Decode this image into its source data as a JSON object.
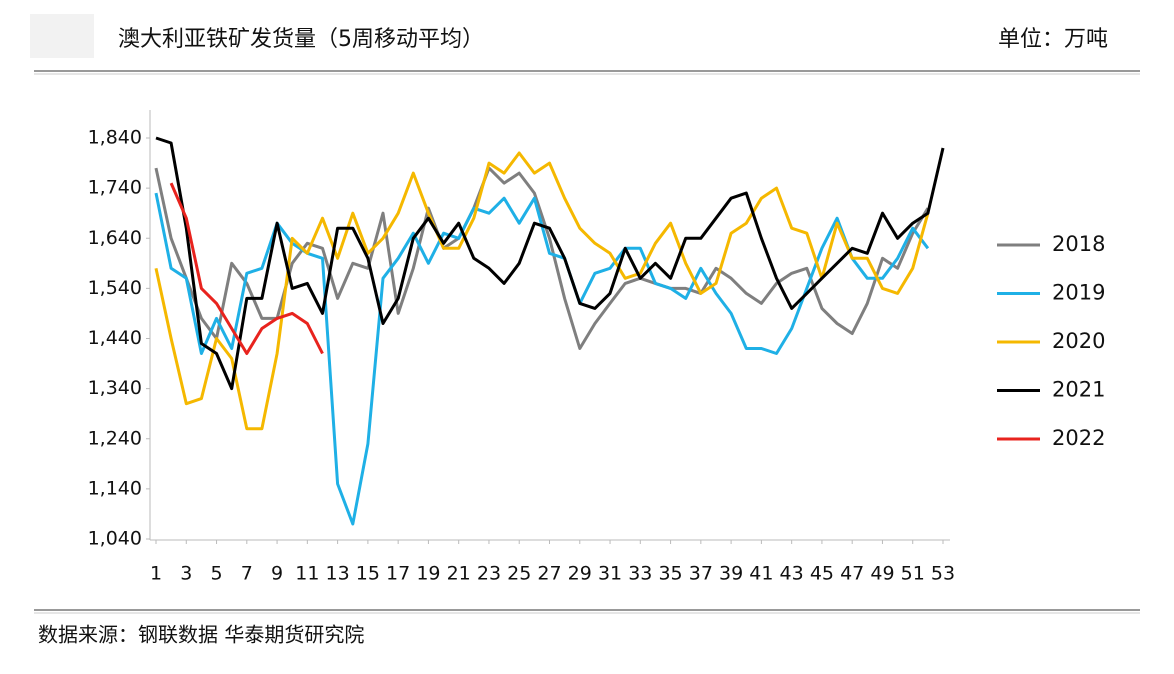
{
  "chart_data": {
    "type": "line",
    "title": "澳大利亚铁矿发货量（5周移动平均）",
    "unit": "单位：万吨",
    "source": "数据来源：钢联数据 华泰期货研究院",
    "x": [
      1,
      2,
      3,
      4,
      5,
      6,
      7,
      8,
      9,
      10,
      11,
      12,
      13,
      14,
      15,
      16,
      17,
      18,
      19,
      20,
      21,
      22,
      23,
      24,
      25,
      26,
      27,
      28,
      29,
      30,
      31,
      32,
      33,
      34,
      35,
      36,
      37,
      38,
      39,
      40,
      41,
      42,
      43,
      44,
      45,
      46,
      47,
      48,
      49,
      50,
      51,
      52,
      53
    ],
    "xlim": [
      1,
      53
    ],
    "xticks": [
      1,
      3,
      5,
      7,
      9,
      11,
      13,
      15,
      17,
      19,
      21,
      23,
      25,
      27,
      29,
      31,
      33,
      35,
      37,
      39,
      41,
      43,
      45,
      47,
      49,
      51,
      53
    ],
    "ylim": [
      1040,
      1840
    ],
    "yticks": [
      {
        "value": 1040,
        "label": "1,040"
      },
      {
        "value": 1140,
        "label": "1,140"
      },
      {
        "value": 1240,
        "label": "1,240"
      },
      {
        "value": 1340,
        "label": "1,340"
      },
      {
        "value": 1440,
        "label": "1,440"
      },
      {
        "value": 1540,
        "label": "1,540"
      },
      {
        "value": 1640,
        "label": "1,640"
      },
      {
        "value": 1740,
        "label": "1,740"
      },
      {
        "value": 1840,
        "label": "1,840"
      }
    ],
    "series": [
      {
        "name": "2018",
        "color": "#7f7f7f",
        "values": [
          1780,
          1640,
          1560,
          1480,
          1440,
          1590,
          1550,
          1480,
          1480,
          1590,
          1630,
          1620,
          1520,
          1590,
          1580,
          1690,
          1490,
          1580,
          1700,
          1620,
          1640,
          1700,
          1780,
          1750,
          1770,
          1730,
          1640,
          1520,
          1420,
          1470,
          1510,
          1550,
          1560,
          1550,
          1540,
          1540,
          1530,
          1580,
          1560,
          1530,
          1510,
          1550,
          1570,
          1580,
          1500,
          1470,
          1450,
          1510,
          1600,
          1580,
          1650,
          1700,
          null
        ]
      },
      {
        "name": "2019",
        "color": "#1fb0e6",
        "values": [
          1730,
          1580,
          1560,
          1410,
          1480,
          1420,
          1570,
          1580,
          1670,
          1630,
          1610,
          1600,
          1150,
          1070,
          1230,
          1560,
          1600,
          1650,
          1590,
          1650,
          1640,
          1700,
          1690,
          1720,
          1670,
          1720,
          1610,
          1600,
          1510,
          1570,
          1580,
          1620,
          1620,
          1550,
          1540,
          1520,
          1580,
          1530,
          1490,
          1420,
          1420,
          1410,
          1460,
          1540,
          1620,
          1680,
          1600,
          1560,
          1560,
          1600,
          1660,
          1620,
          null
        ]
      },
      {
        "name": "2020",
        "color": "#f5b800",
        "values": [
          1580,
          1440,
          1310,
          1320,
          1440,
          1400,
          1260,
          1260,
          1410,
          1640,
          1610,
          1680,
          1600,
          1690,
          1610,
          1640,
          1690,
          1770,
          1690,
          1620,
          1620,
          1680,
          1790,
          1770,
          1810,
          1770,
          1790,
          1720,
          1660,
          1630,
          1610,
          1560,
          1570,
          1630,
          1670,
          1590,
          1530,
          1550,
          1650,
          1670,
          1720,
          1740,
          1660,
          1650,
          1560,
          1670,
          1600,
          1600,
          1540,
          1530,
          1580,
          1690,
          null
        ]
      },
      {
        "name": "2021",
        "color": "#000000",
        "values": [
          1840,
          1830,
          1660,
          1430,
          1410,
          1340,
          1520,
          1520,
          1670,
          1540,
          1550,
          1490,
          1660,
          1660,
          1600,
          1470,
          1520,
          1640,
          1680,
          1630,
          1670,
          1600,
          1580,
          1550,
          1590,
          1670,
          1660,
          1600,
          1510,
          1500,
          1530,
          1620,
          1560,
          1590,
          1560,
          1640,
          1640,
          1680,
          1720,
          1730,
          1640,
          1560,
          1500,
          1530,
          1560,
          1590,
          1620,
          1610,
          1690,
          1640,
          1670,
          1690,
          1820
        ]
      },
      {
        "name": "2022",
        "color": "#e8231e",
        "values": [
          null,
          1750,
          1680,
          1540,
          1510,
          1460,
          1410,
          1460,
          1480,
          1490,
          1470,
          1410,
          null,
          null,
          null,
          null,
          null,
          null,
          null,
          null,
          null,
          null,
          null,
          null,
          null,
          null,
          null,
          null,
          null,
          null,
          null,
          null,
          null,
          null,
          null,
          null,
          null,
          null,
          null,
          null,
          null,
          null,
          null,
          null,
          null,
          null,
          null,
          null,
          null,
          null,
          null,
          null,
          null
        ]
      }
    ]
  }
}
